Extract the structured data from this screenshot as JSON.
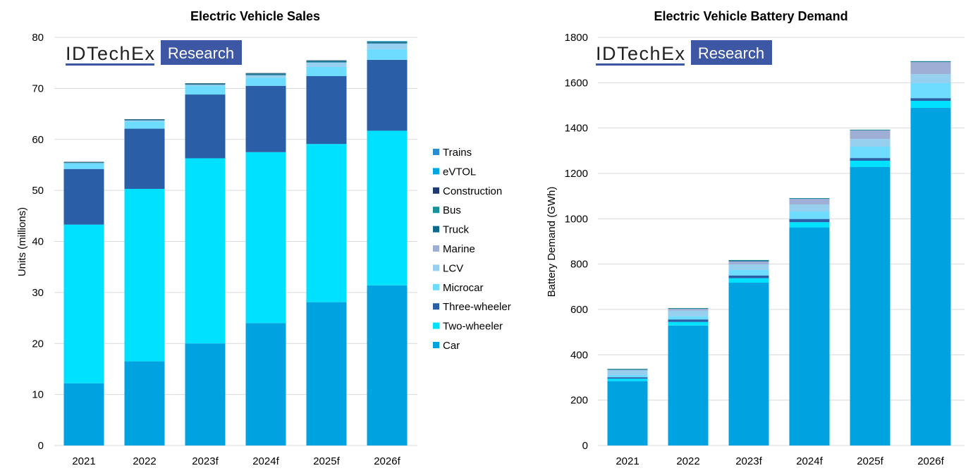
{
  "logo": {
    "brand": "IDTechEx",
    "tag": "Research",
    "tag_color": "#3e57a4"
  },
  "legend": {
    "placement": "between-charts",
    "order": [
      "Trains",
      "eVTOL",
      "Construction",
      "Bus",
      "Truck",
      "Marine",
      "LCV",
      "Microcar",
      "Three-wheeler",
      "Two-wheeler",
      "Car"
    ]
  },
  "colors": {
    "Car": "#00a2e0",
    "Two-wheeler": "#00e1ff",
    "Three-wheeler": "#2a5ea7",
    "Microcar": "#6ddcff",
    "LCV": "#97cfee",
    "Marine": "#9eaed4",
    "Truck": "#0e6a8a",
    "Bus": "#17929a",
    "Construction": "#1f3a6e",
    "eVTOL": "#00a6e0",
    "Trains": "#2a8dd0"
  },
  "chart_data": [
    {
      "type": "bar",
      "stacked": true,
      "title": "Electric Vehicle Sales",
      "xlabel": "",
      "ylabel": "Units (millions)",
      "ylim": [
        0,
        80
      ],
      "yticks": [
        0,
        10,
        20,
        30,
        40,
        50,
        60,
        70,
        80
      ],
      "grid": true,
      "categories": [
        "2021",
        "2022",
        "2023f",
        "2024f",
        "2025f",
        "2026f"
      ],
      "series": [
        {
          "name": "Car",
          "values": [
            12.2,
            16.5,
            20.0,
            24.0,
            28.1,
            31.4
          ]
        },
        {
          "name": "Two-wheeler",
          "values": [
            31.1,
            33.8,
            36.3,
            33.5,
            31.0,
            30.3
          ]
        },
        {
          "name": "Three-wheeler",
          "values": [
            10.9,
            11.8,
            12.5,
            13.0,
            13.3,
            13.9
          ]
        },
        {
          "name": "Microcar",
          "values": [
            1.1,
            1.4,
            1.7,
            1.6,
            1.8,
            2.1
          ]
        },
        {
          "name": "LCV",
          "values": [
            0.1,
            0.2,
            0.2,
            0.5,
            0.9,
            1.1
          ]
        },
        {
          "name": "Marine",
          "values": [
            0,
            0,
            0,
            0,
            0,
            0
          ]
        },
        {
          "name": "Truck",
          "values": [
            0.05,
            0.1,
            0.15,
            0.2,
            0.2,
            0.2
          ]
        },
        {
          "name": "Bus",
          "values": [
            0.1,
            0.1,
            0.1,
            0.1,
            0.1,
            0.1
          ]
        },
        {
          "name": "Construction",
          "values": [
            0.05,
            0.05,
            0.05,
            0.1,
            0.1,
            0.1
          ]
        },
        {
          "name": "eVTOL",
          "values": [
            0,
            0,
            0,
            0,
            0,
            0.05
          ]
        },
        {
          "name": "Trains",
          "values": [
            0,
            0,
            0,
            0,
            0,
            0
          ]
        }
      ]
    },
    {
      "type": "bar",
      "stacked": true,
      "title": "Electric Vehicle Battery Demand",
      "xlabel": "",
      "ylabel": "Battery Demand (GWh)",
      "ylim": [
        0,
        1800
      ],
      "yticks": [
        0,
        200,
        400,
        600,
        800,
        1000,
        1200,
        1400,
        1600,
        1800
      ],
      "grid": true,
      "categories": [
        "2021",
        "2022",
        "2023f",
        "2024f",
        "2025f",
        "2026f"
      ],
      "series": [
        {
          "name": "Car",
          "values": [
            284,
            529,
            718,
            962,
            1228,
            1489
          ]
        },
        {
          "name": "Two-wheeler",
          "values": [
            11,
            16,
            20,
            23,
            28,
            31
          ]
        },
        {
          "name": "Three-wheeler",
          "values": [
            6,
            11,
            12,
            14,
            12,
            12
          ]
        },
        {
          "name": "Microcar",
          "values": [
            10,
            14,
            24,
            33,
            50,
            66
          ]
        },
        {
          "name": "LCV",
          "values": [
            22,
            25,
            25,
            31,
            34,
            40
          ]
        },
        {
          "name": "Marine",
          "values": [
            1,
            8,
            13,
            25,
            38,
            53
          ]
        },
        {
          "name": "Truck",
          "values": [
            3,
            2,
            4,
            2,
            2,
            3
          ]
        },
        {
          "name": "Bus",
          "values": [
            1,
            1,
            2,
            1,
            1,
            1
          ]
        },
        {
          "name": "Construction",
          "values": [
            0,
            0,
            0,
            0,
            0,
            0
          ]
        },
        {
          "name": "eVTOL",
          "values": [
            0,
            0,
            0,
            0,
            0,
            0
          ]
        },
        {
          "name": "Trains",
          "values": [
            0,
            0,
            0,
            0,
            0,
            0
          ]
        }
      ]
    }
  ]
}
